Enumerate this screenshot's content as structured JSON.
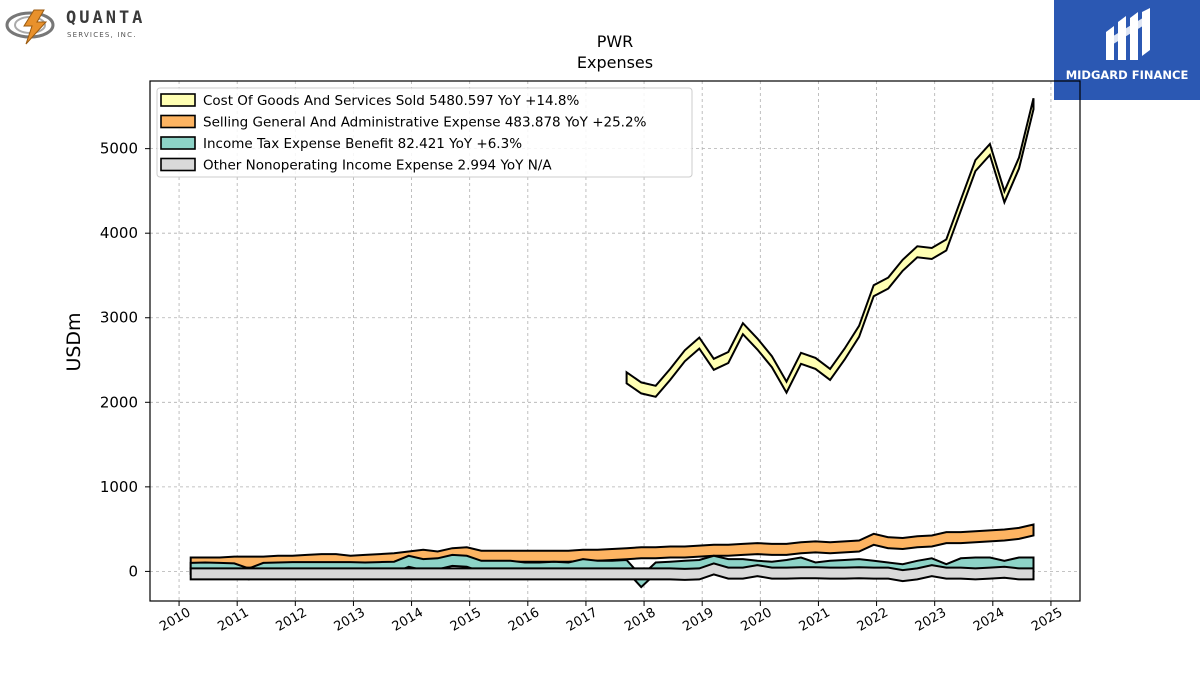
{
  "branding": {
    "left_logo_name": "QUANTA",
    "left_logo_sub": "SERVICES, INC.",
    "right_logo_text": "MIDGARD FINANCE",
    "right_logo_color": "#2b58b3"
  },
  "chart_data": {
    "type": "area",
    "title": "PWR",
    "subtitle": "Expenses",
    "ylabel": "USDm",
    "xlabel": "",
    "grid": true,
    "legend_position": "top-left",
    "xlim": [
      2009.5,
      2025.5
    ],
    "ylim": [
      -350,
      5800
    ],
    "yticks": [
      0,
      1000,
      2000,
      3000,
      4000,
      5000
    ],
    "xticks": [
      2010,
      2011,
      2012,
      2013,
      2014,
      2015,
      2016,
      2017,
      2018,
      2019,
      2020,
      2021,
      2022,
      2023,
      2024,
      2025
    ],
    "x": [
      2010.2,
      2010.45,
      2010.7,
      2010.95,
      2011.2,
      2011.45,
      2011.7,
      2011.95,
      2012.2,
      2012.45,
      2012.7,
      2012.95,
      2013.2,
      2013.45,
      2013.7,
      2013.95,
      2014.2,
      2014.45,
      2014.7,
      2014.95,
      2015.2,
      2015.45,
      2015.7,
      2015.95,
      2016.2,
      2016.45,
      2016.7,
      2016.95,
      2017.2,
      2017.45,
      2017.7,
      2017.95,
      2018.2,
      2018.45,
      2018.7,
      2018.95,
      2019.2,
      2019.45,
      2019.7,
      2019.95,
      2020.2,
      2020.45,
      2020.7,
      2020.95,
      2021.2,
      2021.45,
      2021.7,
      2021.95,
      2022.2,
      2022.45,
      2022.7,
      2022.95,
      2023.2,
      2023.45,
      2023.7,
      2023.95,
      2024.2,
      2024.45,
      2024.7
    ],
    "series": [
      {
        "name": "Cost Of Goods And Services Sold",
        "legend": "Cost Of Goods And Services Sold  5480.597 YoY +14.8%",
        "color": "#ffffb3",
        "values": [
          null,
          null,
          null,
          null,
          null,
          null,
          null,
          null,
          null,
          null,
          null,
          null,
          null,
          null,
          null,
          null,
          null,
          null,
          null,
          null,
          null,
          null,
          null,
          null,
          null,
          null,
          null,
          null,
          null,
          null,
          2290,
          2170,
          2130,
          2330,
          2550,
          2700,
          2450,
          2530,
          2870,
          2690,
          2480,
          2180,
          2520,
          2460,
          2330,
          2570,
          2840,
          3320,
          3410,
          3620,
          3780,
          3760,
          3860,
          4330,
          4800,
          4990,
          4430,
          4830,
          5530
        ]
      },
      {
        "name": "Selling General And Administrative Expense",
        "legend": "Selling General And Administrative Expense  483.878 YoY +25.2%",
        "color": "#fdb462",
        "values": [
          100,
          100,
          100,
          110,
          110,
          110,
          120,
          120,
          130,
          140,
          140,
          120,
          130,
          140,
          150,
          170,
          190,
          170,
          210,
          220,
          180,
          180,
          180,
          180,
          180,
          180,
          180,
          190,
          190,
          200,
          210,
          220,
          220,
          230,
          230,
          240,
          250,
          250,
          260,
          270,
          260,
          260,
          280,
          290,
          280,
          290,
          300,
          380,
          340,
          330,
          350,
          360,
          400,
          400,
          410,
          420,
          430,
          450,
          490
        ]
      },
      {
        "name": "Income Tax Expense Benefit",
        "legend": "Income Tax Expense Benefit  82.421 YoY +6.3%",
        "color": "#8dd3c7",
        "values": [
          35,
          40,
          35,
          30,
          -30,
          35,
          40,
          45,
          45,
          45,
          45,
          45,
          40,
          45,
          50,
          120,
          80,
          90,
          130,
          120,
          60,
          60,
          60,
          40,
          40,
          50,
          40,
          80,
          60,
          60,
          70,
          -120,
          40,
          50,
          60,
          70,
          120,
          80,
          80,
          60,
          50,
          70,
          100,
          40,
          60,
          70,
          80,
          60,
          40,
          20,
          60,
          90,
          20,
          90,
          100,
          100,
          60,
          100,
          100
        ]
      },
      {
        "name": "Other Nonoperating Income Expense",
        "legend": "Other Nonoperating Income Expense  2.994 YoY N/A",
        "color": "#d9d9d9",
        "values": [
          -30,
          -30,
          -30,
          -30,
          -30,
          -30,
          -30,
          -30,
          -30,
          -30,
          -30,
          -30,
          -30,
          -30,
          -30,
          -30,
          -30,
          -30,
          -30,
          -30,
          -30,
          -30,
          -30,
          -30,
          -30,
          -30,
          -30,
          -30,
          -30,
          -30,
          -30,
          -30,
          -30,
          -30,
          -35,
          -30,
          30,
          -20,
          -20,
          10,
          -20,
          -20,
          -15,
          -15,
          -20,
          -20,
          -15,
          -20,
          -20,
          -50,
          -30,
          10,
          -20,
          -20,
          -30,
          -20,
          -10,
          -30,
          -30
        ]
      }
    ]
  }
}
